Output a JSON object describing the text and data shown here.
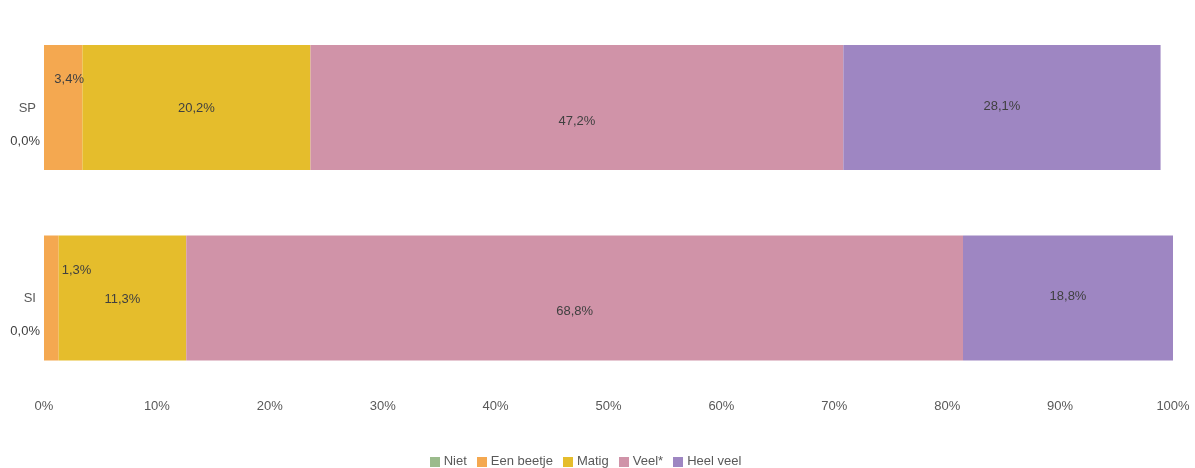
{
  "chart_data": {
    "type": "bar",
    "orientation": "horizontal",
    "stacked": true,
    "categories": [
      "SP",
      "SI"
    ],
    "series": [
      {
        "name": "Niet",
        "color": "#9bbb8c",
        "values": [
          0,
          0
        ],
        "value_labels": [
          "0,0%",
          "0,0%"
        ]
      },
      {
        "name": "Een beetje",
        "color": "#f4a850",
        "values": [
          3.4,
          1.3
        ],
        "value_labels": [
          "3,4%",
          "1,3%"
        ]
      },
      {
        "name": "Matig",
        "color": "#e5bd2c",
        "values": [
          20.2,
          11.3
        ],
        "value_labels": [
          "20,2%",
          "11,3%"
        ]
      },
      {
        "name": "Veel*",
        "color": "#d093a8",
        "values": [
          47.2,
          68.8
        ],
        "value_labels": [
          "47,2%",
          "68,8%"
        ]
      },
      {
        "name": "Heel veel",
        "color": "#9e86c2",
        "values": [
          28.1,
          18.8
        ],
        "value_labels": [
          "28,1%",
          "18,8%"
        ]
      }
    ],
    "xlim": [
      0,
      100
    ],
    "xticks": [
      {
        "value": 0,
        "label": "0%"
      },
      {
        "value": 10,
        "label": "10%"
      },
      {
        "value": 20,
        "label": "20%"
      },
      {
        "value": 30,
        "label": "30%"
      },
      {
        "value": 40,
        "label": "40%"
      },
      {
        "value": 50,
        "label": "50%"
      },
      {
        "value": 60,
        "label": "60%"
      },
      {
        "value": 70,
        "label": "70%"
      },
      {
        "value": 80,
        "label": "80%"
      },
      {
        "value": 90,
        "label": "90%"
      },
      {
        "value": 100,
        "label": "100%"
      }
    ],
    "grid": false,
    "legend": "bottom"
  }
}
